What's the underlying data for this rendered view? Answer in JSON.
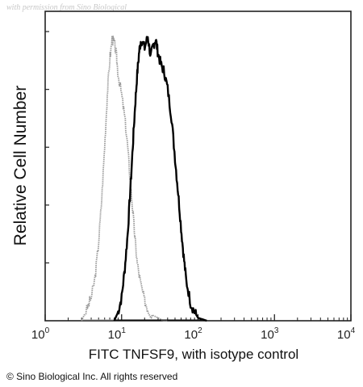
{
  "watermark": "with permission from Sino Biological",
  "copyright": "© Sino Biological Inc. All rights reserved",
  "chart_data": {
    "type": "line",
    "xlabel": "FITC  TNFSF9,  with isotype control",
    "ylabel": "Relative Cell Number",
    "xscale": "log",
    "xlim": [
      1,
      10000
    ],
    "x_ticks": [
      {
        "base": "10",
        "exp": "0",
        "value": 1
      },
      {
        "base": "10",
        "exp": "1",
        "value": 10
      },
      {
        "base": "10",
        "exp": "2",
        "value": 100
      },
      {
        "base": "10",
        "exp": "3",
        "value": 1000
      },
      {
        "base": "10",
        "exp": "4",
        "value": 10000
      }
    ],
    "ylim": [
      0,
      1
    ],
    "y_ticks_labeled": false,
    "grid": false,
    "colors": {
      "sample": "#000000",
      "isotype": "#9a9a9a"
    },
    "series": [
      {
        "role": "sample",
        "x": [
          8,
          9,
          10,
          11,
          12,
          13,
          14,
          15,
          16,
          17,
          18,
          20,
          22,
          24,
          26,
          28,
          30,
          33,
          36,
          40,
          45,
          50,
          55,
          60,
          65,
          70,
          80,
          90,
          100,
          130
        ],
        "y": [
          0.0,
          0.03,
          0.08,
          0.18,
          0.3,
          0.45,
          0.6,
          0.74,
          0.85,
          0.93,
          0.97,
          0.94,
          0.98,
          0.91,
          0.95,
          0.97,
          0.92,
          0.88,
          0.86,
          0.8,
          0.7,
          0.56,
          0.44,
          0.32,
          0.22,
          0.14,
          0.06,
          0.03,
          0.01,
          0.0
        ]
      },
      {
        "role": "isotype",
        "x": [
          3.0,
          3.5,
          4.0,
          4.5,
          5.0,
          5.5,
          6.0,
          6.5,
          7.0,
          7.5,
          8.0,
          8.5,
          9.0,
          10,
          11,
          12,
          13,
          14,
          15,
          16,
          18,
          20,
          22,
          25,
          30,
          35,
          40
        ],
        "y": [
          0.0,
          0.04,
          0.08,
          0.15,
          0.27,
          0.42,
          0.6,
          0.78,
          0.9,
          0.97,
          0.96,
          0.92,
          0.85,
          0.78,
          0.7,
          0.6,
          0.48,
          0.38,
          0.28,
          0.2,
          0.12,
          0.07,
          0.04,
          0.02,
          0.01,
          0.0,
          0.0
        ]
      }
    ]
  }
}
